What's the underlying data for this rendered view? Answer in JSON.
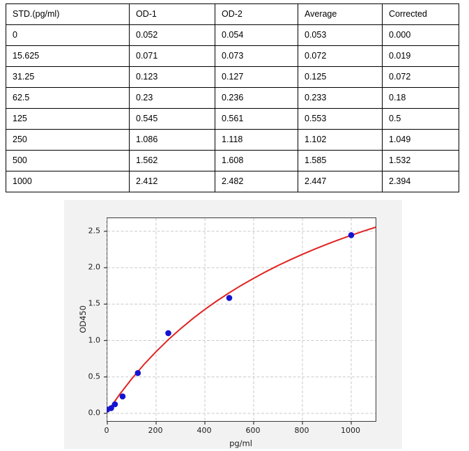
{
  "table": {
    "headers": [
      "STD.(pg/ml)",
      "OD-1",
      "OD-2",
      "Average",
      "Corrected"
    ],
    "rows": [
      [
        "0",
        "0.052",
        "0.054",
        "0.053",
        "0.000"
      ],
      [
        "15.625",
        "0.071",
        "0.073",
        "0.072",
        "0.019"
      ],
      [
        "31.25",
        "0.123",
        "0.127",
        "0.125",
        "0.072"
      ],
      [
        "62.5",
        "0.23",
        "0.236",
        "0.233",
        "0.18"
      ],
      [
        "125",
        "0.545",
        "0.561",
        "0.553",
        "0.5"
      ],
      [
        "250",
        "1.086",
        "1.118",
        "1.102",
        "1.049"
      ],
      [
        "500",
        "1.562",
        "1.608",
        "1.585",
        "1.532"
      ],
      [
        "1000",
        "2.412",
        "2.482",
        "2.447",
        "2.394"
      ]
    ]
  },
  "chart_data": {
    "type": "scatter",
    "title": "",
    "xlabel": "pg/ml",
    "ylabel": "OD450",
    "xlim": [
      0,
      1100
    ],
    "ylim": [
      -0.105,
      2.68
    ],
    "grid": true,
    "legend_position": "none",
    "x_ticks": {
      "values": [
        0,
        200,
        400,
        600,
        800,
        1000
      ],
      "labels": [
        "0",
        "200",
        "400",
        "600",
        "800",
        "1000"
      ]
    },
    "y_ticks": {
      "values": [
        0,
        0.5,
        1.0,
        1.5,
        2.0,
        2.5
      ],
      "labels": [
        "0.0",
        "0.5",
        "1.0",
        "1.5",
        "2.0",
        "2.5"
      ]
    },
    "series": [
      {
        "name": "standard-points",
        "type": "scatter",
        "x": [
          0,
          15.625,
          31.25,
          62.5,
          125,
          250,
          500,
          1000
        ],
        "y": [
          0.053,
          0.072,
          0.125,
          0.233,
          0.553,
          1.102,
          1.585,
          2.447
        ]
      },
      {
        "name": "fit-curve",
        "type": "line",
        "x": [
          0,
          50,
          100,
          150,
          200,
          250,
          300,
          350,
          400,
          450,
          500,
          550,
          600,
          650,
          700,
          750,
          800,
          850,
          900,
          950,
          1000,
          1050,
          1100
        ],
        "y": [
          0.02,
          0.259,
          0.474,
          0.67,
          0.848,
          1.012,
          1.161,
          1.3,
          1.428,
          1.546,
          1.656,
          1.759,
          1.855,
          1.945,
          2.03,
          2.109,
          2.184,
          2.255,
          2.322,
          2.385,
          2.445,
          2.502,
          2.556
        ]
      }
    ]
  },
  "colors": {
    "curve": "#e02421",
    "points": "#1414d2",
    "grid": "#c9c9c9",
    "spine": "#3a3a3a",
    "tick": "#333333",
    "figure_bg": "#f2f2f2",
    "plot_bg": "#ffffff",
    "table_border": "#000000"
  }
}
